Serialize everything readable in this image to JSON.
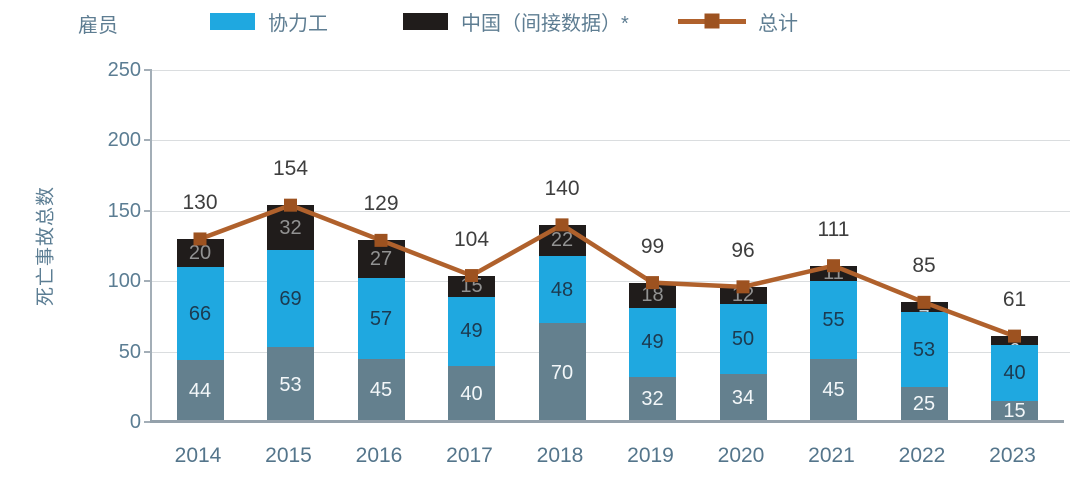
{
  "legend": {
    "title": "雇员",
    "items": [
      {
        "label": "协力工",
        "type": "swatch",
        "color": "#1fa8e0"
      },
      {
        "label": "中国（间接数据）*",
        "type": "swatch",
        "color": "#201c1b"
      },
      {
        "label": "总计",
        "type": "line",
        "color": "#b0612c",
        "marker_color": "#9d5220"
      }
    ]
  },
  "chart_data": {
    "type": "bar",
    "subtype": "stacked-bars-with-total-line",
    "title": "",
    "xlabel": "",
    "ylabel": "死亡事故总数",
    "ylim": [
      0,
      250
    ],
    "yticks": [
      0,
      50,
      100,
      150,
      200,
      250
    ],
    "grid": true,
    "legend_position": "top",
    "categories": [
      "2014",
      "2015",
      "2016",
      "2017",
      "2018",
      "2019",
      "2020",
      "2021",
      "2022",
      "2023"
    ],
    "series": [
      {
        "name": "雇员",
        "type": "bar",
        "color": "#64808e",
        "label_color": "#f3f7f9",
        "values": [
          44,
          53,
          45,
          40,
          70,
          32,
          34,
          45,
          25,
          15
        ]
      },
      {
        "name": "协力工",
        "type": "bar",
        "color": "#1fa8e0",
        "label_color": "#1c3a50",
        "values": [
          66,
          69,
          57,
          49,
          48,
          49,
          50,
          55,
          53,
          40
        ]
      },
      {
        "name": "中国（间接数据）*",
        "type": "bar",
        "color": "#201c1b",
        "label_color": "#929292",
        "small_value_label_color": "#c9d4da",
        "values": [
          20,
          32,
          27,
          15,
          22,
          18,
          12,
          11,
          7,
          6
        ]
      },
      {
        "name": "总计",
        "type": "line",
        "color": "#b0612c",
        "marker": "square",
        "marker_color": "#9d5220",
        "label_color": "#3e3e3e",
        "values": [
          130,
          154,
          129,
          104,
          140,
          99,
          96,
          111,
          85,
          61
        ]
      }
    ]
  }
}
